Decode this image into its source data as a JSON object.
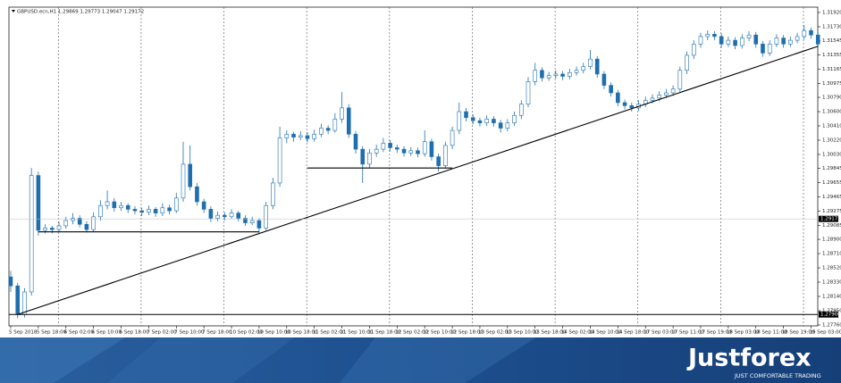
{
  "chart_data": {
    "type": "candlestick",
    "header": "GBPUSD.ecn,H1  1.29869 1.29773 1.29047 1.29172",
    "xtick_labels": [
      "5 Sep 2018",
      "5 Sep 18:00",
      "6 Sep 02:00",
      "6 Sep 10:00",
      "6 Sep 18:00",
      "7 Sep 02:00",
      "7 Sep 10:00",
      "7 Sep 18:00",
      "10 Sep 02:00",
      "10 Sep 10:00",
      "10 Sep 18:00",
      "11 Sep 02:00",
      "11 Sep 10:00",
      "11 Sep 18:00",
      "12 Sep 02:00",
      "12 Sep 10:00",
      "12 Sep 18:00",
      "13 Sep 02:00",
      "13 Sep 10:00",
      "13 Sep 18:00",
      "14 Sep 02:00",
      "14 Sep 10:00",
      "14 Sep 18:00",
      "17 Sep 03:00",
      "17 Sep 11:00",
      "17 Sep 19:00",
      "18 Sep 03:00",
      "18 Sep 11:00",
      "18 Sep 19:00",
      "19 Sep 03:00"
    ],
    "ylim": [
      1.27748,
      1.31991
    ],
    "yticks": [
      {
        "value": 1.3192,
        "label": "1.31920"
      },
      {
        "value": 1.3173,
        "label": "1.31730"
      },
      {
        "value": 1.31545,
        "label": "1.31545"
      },
      {
        "value": 1.31355,
        "label": "1.31355"
      },
      {
        "value": 1.31165,
        "label": "1.31165"
      },
      {
        "value": 1.30975,
        "label": "1.30975"
      },
      {
        "value": 1.3079,
        "label": "1.30790"
      },
      {
        "value": 1.306,
        "label": "1.30600"
      },
      {
        "value": 1.3041,
        "label": "1.30410"
      },
      {
        "value": 1.3022,
        "label": "1.30220"
      },
      {
        "value": 1.3003,
        "label": "1.30030"
      },
      {
        "value": 1.29845,
        "label": "1.29845"
      },
      {
        "value": 1.29655,
        "label": "1.29655"
      },
      {
        "value": 1.29465,
        "label": "1.29465"
      },
      {
        "value": 1.29275,
        "label": "1.29275"
      },
      {
        "value": 1.29085,
        "label": "1.29085"
      },
      {
        "value": 1.289,
        "label": "1.28900"
      },
      {
        "value": 1.2871,
        "label": "1.28710"
      },
      {
        "value": 1.2852,
        "label": "1.28520"
      },
      {
        "value": 1.2833,
        "label": "1.28330"
      },
      {
        "value": 1.2814,
        "label": "1.28140"
      },
      {
        "value": 1.2795,
        "label": "1.27950"
      },
      {
        "value": 1.2776,
        "label": "1.27760"
      }
    ],
    "color": "#1f6fae",
    "ohlc": [
      [
        1.284,
        1.2848,
        1.282,
        1.2828
      ],
      [
        1.2828,
        1.2832,
        1.2785,
        1.279
      ],
      [
        1.279,
        1.2825,
        1.2786,
        1.282
      ],
      [
        1.282,
        1.2985,
        1.2815,
        1.2975
      ],
      [
        1.2975,
        1.298,
        1.2895,
        1.2902
      ],
      [
        1.2902,
        1.291,
        1.2898,
        1.2905
      ],
      [
        1.2905,
        1.2908,
        1.2898,
        1.2903
      ],
      [
        1.2903,
        1.2913,
        1.29,
        1.2908
      ],
      [
        1.2908,
        1.292,
        1.2904,
        1.2915
      ],
      [
        1.2915,
        1.2925,
        1.291,
        1.2918
      ],
      [
        1.2918,
        1.2922,
        1.2906,
        1.291
      ],
      [
        1.291,
        1.2914,
        1.2899,
        1.2903
      ],
      [
        1.2903,
        1.2926,
        1.29,
        1.292
      ],
      [
        1.292,
        1.2942,
        1.2915,
        1.2935
      ],
      [
        1.2935,
        1.2955,
        1.293,
        1.294
      ],
      [
        1.294,
        1.2945,
        1.2927,
        1.2932
      ],
      [
        1.2932,
        1.294,
        1.2928,
        1.2935
      ],
      [
        1.2935,
        1.2938,
        1.2925,
        1.293
      ],
      [
        1.293,
        1.2934,
        1.2923,
        1.2928
      ],
      [
        1.2928,
        1.2932,
        1.2921,
        1.2926
      ],
      [
        1.2926,
        1.2935,
        1.2922,
        1.293
      ],
      [
        1.293,
        1.2933,
        1.292,
        1.2925
      ],
      [
        1.2925,
        1.2938,
        1.2921,
        1.2932
      ],
      [
        1.2932,
        1.2936,
        1.2923,
        1.2928
      ],
      [
        1.2928,
        1.2952,
        1.2925,
        1.2945
      ],
      [
        1.2945,
        1.302,
        1.294,
        1.299
      ],
      [
        1.299,
        1.3015,
        1.2955,
        1.296
      ],
      [
        1.296,
        1.2965,
        1.2935,
        1.294
      ],
      [
        1.294,
        1.2944,
        1.2925,
        1.293
      ],
      [
        1.293,
        1.2934,
        1.2913,
        1.2918
      ],
      [
        1.2918,
        1.2927,
        1.2914,
        1.2922
      ],
      [
        1.2922,
        1.2926,
        1.2915,
        1.292
      ],
      [
        1.292,
        1.293,
        1.2917,
        1.2925
      ],
      [
        1.2925,
        1.2928,
        1.2914,
        1.2918
      ],
      [
        1.2918,
        1.2922,
        1.2908,
        1.2912
      ],
      [
        1.2912,
        1.292,
        1.2909,
        1.2915
      ],
      [
        1.2915,
        1.2918,
        1.2898,
        1.2905
      ],
      [
        1.2905,
        1.294,
        1.2902,
        1.2935
      ],
      [
        1.2935,
        1.2972,
        1.293,
        1.2965
      ],
      [
        1.2965,
        1.304,
        1.296,
        1.3025
      ],
      [
        1.3025,
        1.3035,
        1.3018,
        1.303
      ],
      [
        1.303,
        1.3033,
        1.302,
        1.3026
      ],
      [
        1.3026,
        1.3034,
        1.3022,
        1.3028
      ],
      [
        1.3028,
        1.3032,
        1.3019,
        1.3024
      ],
      [
        1.3024,
        1.3036,
        1.302,
        1.303
      ],
      [
        1.303,
        1.3044,
        1.3026,
        1.3038
      ],
      [
        1.3038,
        1.3042,
        1.303,
        1.3035
      ],
      [
        1.3035,
        1.3058,
        1.3032,
        1.305
      ],
      [
        1.305,
        1.3086,
        1.3045,
        1.3065
      ],
      [
        1.3065,
        1.307,
        1.3025,
        1.303
      ],
      [
        1.303,
        1.3034,
        1.3004,
        1.301
      ],
      [
        1.301,
        1.3014,
        1.2965,
        1.299
      ],
      [
        1.299,
        1.301,
        1.2985,
        1.3005
      ],
      [
        1.3005,
        1.3016,
        1.3,
        1.301
      ],
      [
        1.301,
        1.3025,
        1.3006,
        1.3018
      ],
      [
        1.3018,
        1.3022,
        1.3007,
        1.3012
      ],
      [
        1.3012,
        1.3016,
        1.3005,
        1.301
      ],
      [
        1.301,
        1.3014,
        1.3,
        1.3005
      ],
      [
        1.3005,
        1.3013,
        1.3001,
        1.3008
      ],
      [
        1.3008,
        1.3012,
        1.2999,
        1.3004
      ],
      [
        1.3004,
        1.3035,
        1.3,
        1.302
      ],
      [
        1.302,
        1.3024,
        1.2995,
        1.3
      ],
      [
        1.3,
        1.3004,
        1.298,
        1.2988
      ],
      [
        1.2988,
        1.302,
        1.2984,
        1.3015
      ],
      [
        1.3015,
        1.304,
        1.301,
        1.3035
      ],
      [
        1.3035,
        1.3072,
        1.303,
        1.306
      ],
      [
        1.306,
        1.3065,
        1.3047,
        1.3052
      ],
      [
        1.3052,
        1.3056,
        1.3043,
        1.3048
      ],
      [
        1.3048,
        1.3052,
        1.304,
        1.3045
      ],
      [
        1.3045,
        1.3055,
        1.3041,
        1.305
      ],
      [
        1.305,
        1.3054,
        1.304,
        1.3045
      ],
      [
        1.3045,
        1.3049,
        1.3032,
        1.3038
      ],
      [
        1.3038,
        1.305,
        1.3034,
        1.3045
      ],
      [
        1.3045,
        1.306,
        1.3041,
        1.3055
      ],
      [
        1.3055,
        1.3075,
        1.305,
        1.307
      ],
      [
        1.307,
        1.3106,
        1.3066,
        1.31
      ],
      [
        1.31,
        1.3125,
        1.3095,
        1.3115
      ],
      [
        1.3115,
        1.3119,
        1.31,
        1.3105
      ],
      [
        1.3105,
        1.3113,
        1.3101,
        1.3108
      ],
      [
        1.3108,
        1.3115,
        1.3104,
        1.311
      ],
      [
        1.311,
        1.3114,
        1.3102,
        1.3107
      ],
      [
        1.3107,
        1.3117,
        1.3103,
        1.3112
      ],
      [
        1.3112,
        1.312,
        1.3108,
        1.3115
      ],
      [
        1.3115,
        1.3125,
        1.3111,
        1.312
      ],
      [
        1.312,
        1.3142,
        1.3116,
        1.313
      ],
      [
        1.313,
        1.3134,
        1.3105,
        1.311
      ],
      [
        1.311,
        1.3114,
        1.309,
        1.3095
      ],
      [
        1.3095,
        1.3099,
        1.308,
        1.3085
      ],
      [
        1.3085,
        1.3089,
        1.3067,
        1.3072
      ],
      [
        1.3072,
        1.3076,
        1.3063,
        1.3068
      ],
      [
        1.3068,
        1.3072,
        1.306,
        1.3065
      ],
      [
        1.3065,
        1.3075,
        1.3061,
        1.307
      ],
      [
        1.307,
        1.308,
        1.3066,
        1.3075
      ],
      [
        1.3075,
        1.3083,
        1.3071,
        1.3078
      ],
      [
        1.3078,
        1.3087,
        1.3074,
        1.3082
      ],
      [
        1.3082,
        1.309,
        1.3078,
        1.3085
      ],
      [
        1.3085,
        1.3095,
        1.3081,
        1.309
      ],
      [
        1.309,
        1.312,
        1.3086,
        1.3115
      ],
      [
        1.3115,
        1.314,
        1.311,
        1.3135
      ],
      [
        1.3135,
        1.3155,
        1.313,
        1.315
      ],
      [
        1.315,
        1.3165,
        1.3145,
        1.316
      ],
      [
        1.316,
        1.3168,
        1.3155,
        1.3163
      ],
      [
        1.3163,
        1.3167,
        1.3155,
        1.316
      ],
      [
        1.316,
        1.3164,
        1.3145,
        1.315
      ],
      [
        1.315,
        1.316,
        1.3146,
        1.3155
      ],
      [
        1.3155,
        1.3159,
        1.3143,
        1.3148
      ],
      [
        1.3148,
        1.3163,
        1.3144,
        1.3158
      ],
      [
        1.3158,
        1.3167,
        1.3154,
        1.3162
      ],
      [
        1.3162,
        1.3166,
        1.3145,
        1.315
      ],
      [
        1.315,
        1.3154,
        1.3133,
        1.3138
      ],
      [
        1.3138,
        1.3155,
        1.3134,
        1.315
      ],
      [
        1.315,
        1.3163,
        1.3146,
        1.3158
      ],
      [
        1.3158,
        1.3162,
        1.3145,
        1.315
      ],
      [
        1.315,
        1.316,
        1.3146,
        1.3155
      ],
      [
        1.3155,
        1.3165,
        1.3151,
        1.316
      ],
      [
        1.316,
        1.3175,
        1.3156,
        1.3168
      ],
      [
        1.3168,
        1.3172,
        1.3157,
        1.3162
      ],
      [
        1.3162,
        1.3166,
        1.3145,
        1.315
      ]
    ],
    "lines": [
      {
        "x": [
          1,
          117
        ],
        "y": [
          1.279,
          1.3147
        ]
      },
      {
        "x": [
          4,
          36
        ],
        "y": [
          1.29,
          1.29
        ]
      },
      {
        "x": [
          43,
          64
        ],
        "y": [
          1.2985,
          1.2985
        ]
      }
    ],
    "price_labels": [
      {
        "value": 1.29172,
        "label": "1.29172"
      },
      {
        "value": 1.279,
        "label": "1.27900"
      }
    ]
  },
  "branding": {
    "logo": "Justforex",
    "tagline": "JUST COMFORTABLE TRADING"
  }
}
